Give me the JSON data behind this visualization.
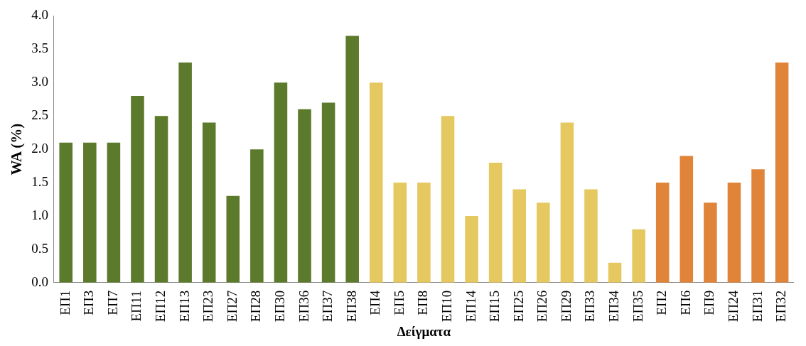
{
  "chart_data": {
    "type": "bar",
    "xlabel": "Δείγματα",
    "ylabel": "WA (%)",
    "categories": [
      "ΕΠ1",
      "ΕΠ3",
      "ΕΠ7",
      "ΕΠ11",
      "ΕΠ12",
      "ΕΠ13",
      "ΕΠ23",
      "ΕΠ27",
      "ΕΠ28",
      "ΕΠ30",
      "ΕΠ36",
      "ΕΠ37",
      "ΕΠ38",
      "ΕΠ4",
      "ΕΠ5",
      "ΕΠ8",
      "ΕΠ10",
      "ΕΠ14",
      "ΕΠ15",
      "ΕΠ25",
      "ΕΠ26",
      "ΕΠ29",
      "ΕΠ33",
      "ΕΠ34",
      "ΕΠ35",
      "ΕΠ2",
      "ΕΠ6",
      "ΕΠ9",
      "ΕΠ24",
      "ΕΠ31",
      "ΕΠ32"
    ],
    "values": [
      2.1,
      2.1,
      2.1,
      2.8,
      2.5,
      3.3,
      2.4,
      1.3,
      2.0,
      3.0,
      2.6,
      2.7,
      3.7,
      3.0,
      1.5,
      1.5,
      2.5,
      1.0,
      1.8,
      1.4,
      1.2,
      2.4,
      1.4,
      0.3,
      0.8,
      1.5,
      1.9,
      1.2,
      1.5,
      1.7,
      3.3
    ],
    "colors": [
      "#5b7a2b",
      "#5b7a2b",
      "#5b7a2b",
      "#5b7a2b",
      "#5b7a2b",
      "#5b7a2b",
      "#5b7a2b",
      "#5b7a2b",
      "#5b7a2b",
      "#5b7a2b",
      "#5b7a2b",
      "#5b7a2b",
      "#5b7a2b",
      "#e6c860",
      "#e6c860",
      "#e6c860",
      "#e6c860",
      "#e6c860",
      "#e6c860",
      "#e6c860",
      "#e6c860",
      "#e6c860",
      "#e6c860",
      "#e6c860",
      "#e6c860",
      "#e0843a",
      "#e0843a",
      "#e0843a",
      "#e0843a",
      "#e0843a",
      "#e0843a"
    ],
    "ylim": [
      0,
      4
    ],
    "yticks": [
      {
        "value": 0,
        "label": "0.0"
      },
      {
        "value": 0.5,
        "label": "0.5"
      },
      {
        "value": 1,
        "label": "1.0"
      },
      {
        "value": 1.5,
        "label": "1.5"
      },
      {
        "value": 2,
        "label": "2.0"
      },
      {
        "value": 2.5,
        "label": "2.5"
      },
      {
        "value": 3,
        "label": "3.0"
      },
      {
        "value": 3.5,
        "label": "3.5"
      },
      {
        "value": 4,
        "label": "4.0"
      }
    ],
    "grid": false,
    "legend": false
  }
}
